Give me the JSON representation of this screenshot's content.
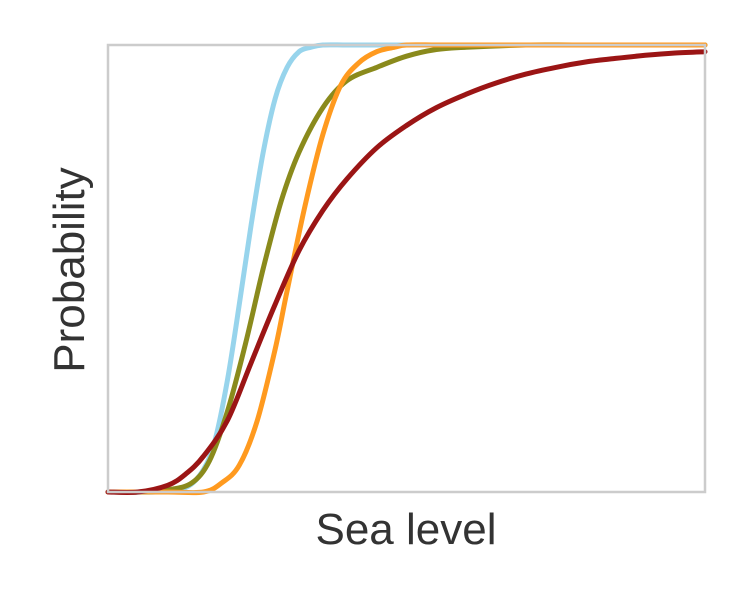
{
  "chart_data": {
    "type": "line",
    "title": "",
    "xlabel": "Sea level",
    "ylabel": "Probability",
    "xlim": [
      0,
      1
    ],
    "ylim": [
      0,
      1
    ],
    "grid": false,
    "legend": "none",
    "frame_color": "#cccccc",
    "series": [
      {
        "color": "#97d4ec",
        "x": [
          0,
          0.08,
          0.13,
          0.16,
          0.18,
          0.2,
          0.22,
          0.24,
          0.26,
          0.28,
          0.3,
          0.32,
          0.34,
          0.36,
          0.4,
          0.45,
          0.5,
          0.6,
          1.0
        ],
        "y": [
          0,
          0.0,
          0.01,
          0.05,
          0.12,
          0.25,
          0.42,
          0.6,
          0.76,
          0.88,
          0.95,
          0.985,
          0.995,
          1.0,
          1.0,
          1.0,
          1.0,
          1.0,
          1.0
        ]
      },
      {
        "color": "#8a8a1c",
        "x": [
          0,
          0.05,
          0.1,
          0.14,
          0.17,
          0.2,
          0.23,
          0.26,
          0.29,
          0.32,
          0.36,
          0.4,
          0.45,
          0.5,
          0.55,
          0.6,
          0.7,
          0.8,
          1.0
        ],
        "y": [
          0,
          0.0,
          0.005,
          0.02,
          0.07,
          0.18,
          0.33,
          0.5,
          0.65,
          0.76,
          0.86,
          0.92,
          0.95,
          0.975,
          0.99,
          0.995,
          1.0,
          1.0,
          1.0
        ]
      },
      {
        "color": "#ff9a1f",
        "x": [
          0,
          0.1,
          0.16,
          0.19,
          0.22,
          0.25,
          0.28,
          0.3,
          0.33,
          0.36,
          0.39,
          0.42,
          0.45,
          0.48,
          0.5,
          0.55,
          0.6,
          0.7,
          1.0
        ],
        "y": [
          0,
          0.0,
          0.0,
          0.02,
          0.06,
          0.16,
          0.32,
          0.45,
          0.64,
          0.8,
          0.91,
          0.96,
          0.985,
          0.995,
          1.0,
          1.0,
          1.0,
          1.0,
          1.0
        ]
      },
      {
        "color": "#9b1515",
        "x": [
          0,
          0.05,
          0.1,
          0.13,
          0.16,
          0.2,
          0.24,
          0.28,
          0.32,
          0.36,
          0.4,
          0.45,
          0.5,
          0.55,
          0.6,
          0.65,
          0.7,
          0.75,
          0.8,
          0.85,
          0.9,
          0.95,
          1.0
        ],
        "y": [
          0,
          0.0,
          0.015,
          0.04,
          0.08,
          0.16,
          0.29,
          0.42,
          0.54,
          0.63,
          0.7,
          0.77,
          0.82,
          0.86,
          0.89,
          0.915,
          0.935,
          0.95,
          0.962,
          0.97,
          0.977,
          0.982,
          0.985
        ]
      }
    ]
  }
}
